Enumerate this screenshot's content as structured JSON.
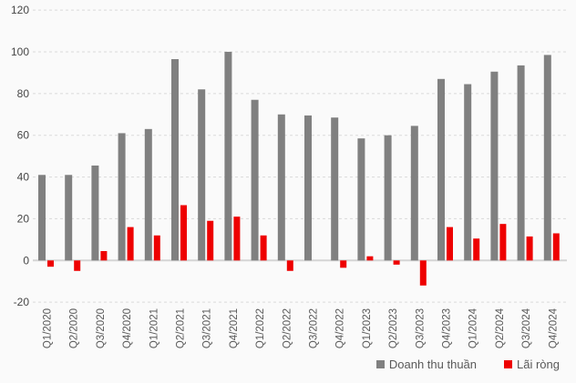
{
  "chart_data": {
    "type": "bar",
    "title": "",
    "xlabel": "",
    "ylabel": "",
    "categories": [
      "Q1/2020",
      "Q2/2020",
      "Q3/2020",
      "Q4/2020",
      "Q1/2021",
      "Q2/2021",
      "Q3/2021",
      "Q4/2021",
      "Q1/2022",
      "Q2/2022",
      "Q3/2022",
      "Q4/2022",
      "Q1/2023",
      "Q2/2023",
      "Q3/2023",
      "Q4/2023",
      "Q1/2024",
      "Q2/2024",
      "Q3/2024",
      "Q4/2024"
    ],
    "series": [
      {
        "name": "Doanh thu thuần",
        "color": "#808080",
        "values": [
          41,
          41,
          45.5,
          61,
          63,
          96.5,
          82,
          100,
          77,
          70,
          69.5,
          68.5,
          58.5,
          60,
          64.5,
          87,
          84.5,
          90.5,
          93.5,
          98.5
        ]
      },
      {
        "name": "Lãi ròng",
        "color": "#ee0000",
        "values": [
          -3,
          -5,
          4.5,
          16,
          12,
          26.5,
          19,
          21,
          12,
          -5,
          0,
          -3.5,
          2,
          -2,
          -12,
          16,
          10.5,
          17.5,
          11.5,
          13
        ]
      }
    ],
    "ylim": [
      -20,
      120
    ],
    "yticks": [
      120,
      100,
      80,
      60,
      40,
      20,
      0,
      -20
    ],
    "grid": "horizontal-dashed",
    "legend_position": "bottom-right"
  },
  "colors": {
    "background": "#fafafa",
    "gridline": "#d9d9d9",
    "zero_line": "#d4d4d4",
    "tick_text": "#464646",
    "category_text": "#595959"
  }
}
